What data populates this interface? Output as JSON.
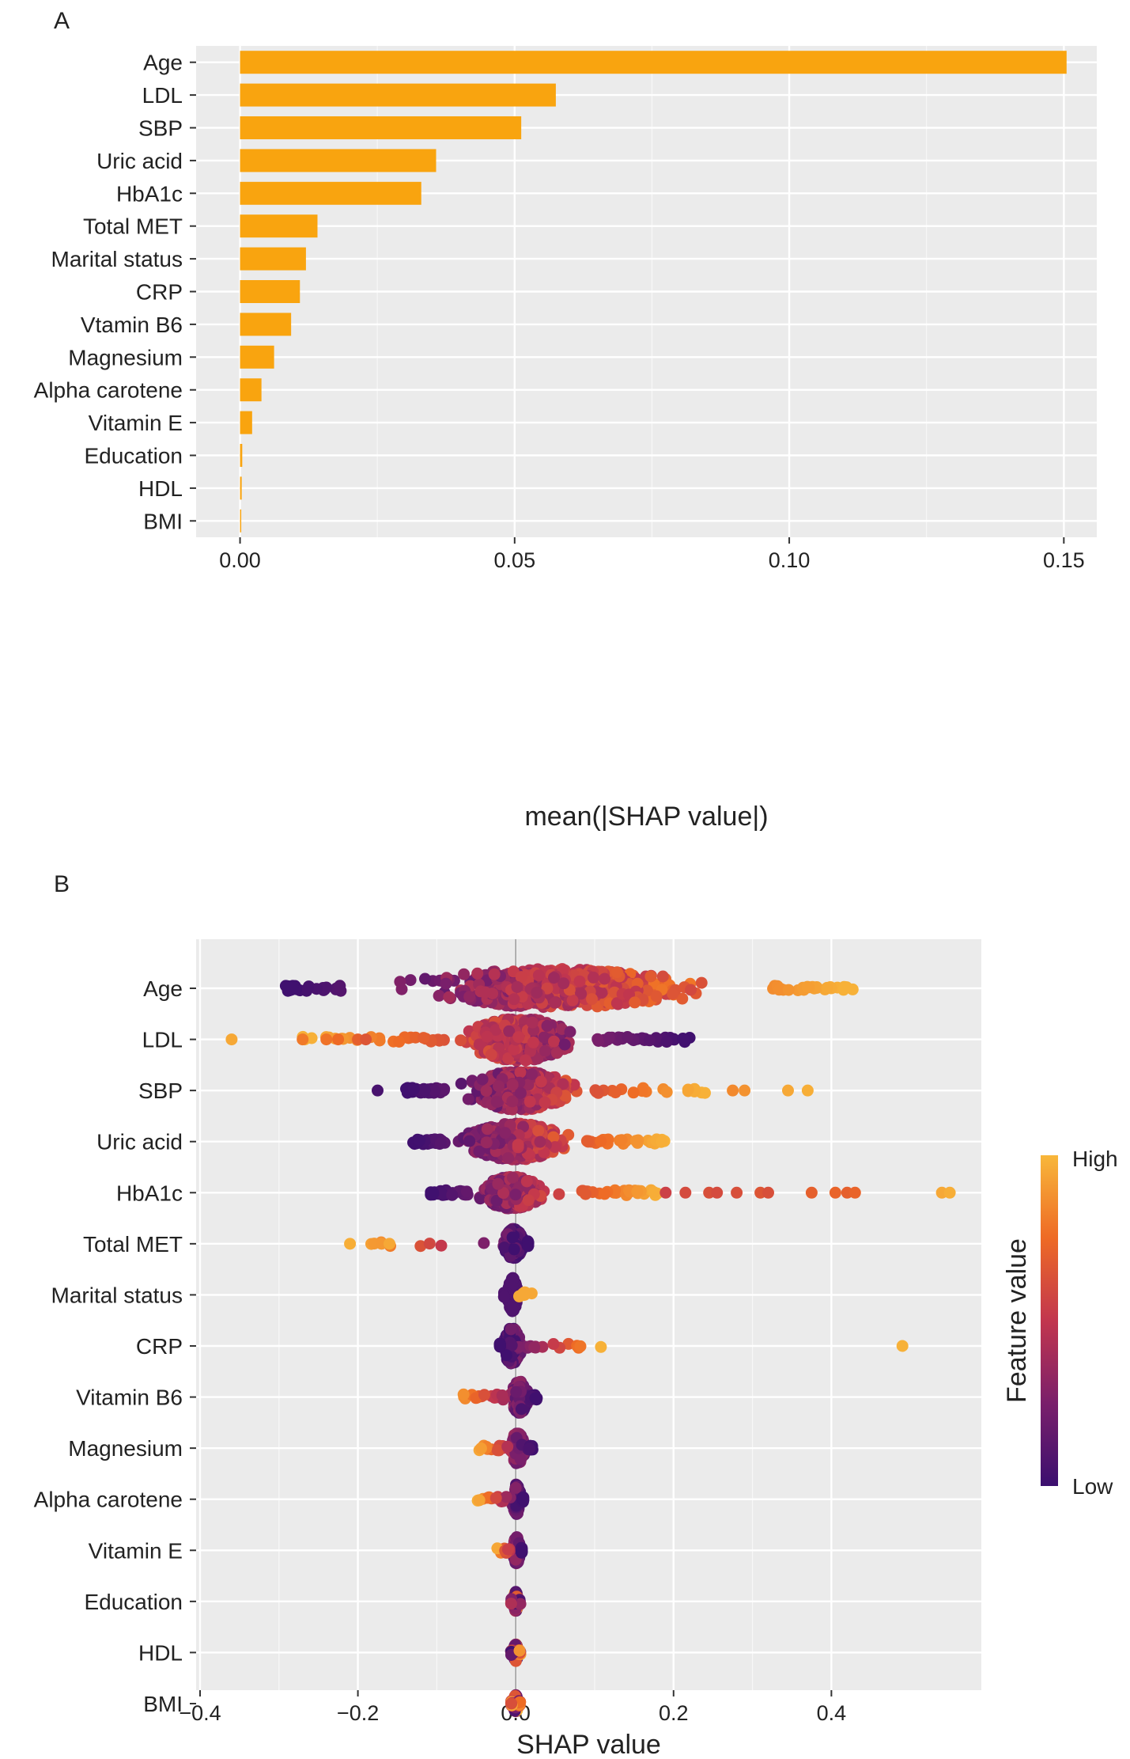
{
  "chart_data": [
    {
      "panel": "A",
      "type": "bar",
      "orientation": "horizontal",
      "title": "",
      "xlabel": "mean(|SHAP value|)",
      "ylabel": "",
      "xlim": [
        -0.008,
        0.156
      ],
      "xticks": [
        0.0,
        0.05,
        0.1,
        0.15
      ],
      "xtick_labels": [
        "0.00",
        "0.05",
        "0.10",
        "0.15"
      ],
      "grid": true,
      "categories": [
        "Age",
        "LDL",
        "SBP",
        "Uric acid",
        "HbA1c",
        "Total MET",
        "Marital status",
        "CRP",
        "Vtamin B6",
        "Magnesium",
        "Alpha carotene",
        "Vitamin E",
        "Education",
        "HDL",
        "BMI"
      ],
      "values": [
        0.1505,
        0.0575,
        0.0512,
        0.0357,
        0.033,
        0.0141,
        0.012,
        0.0109,
        0.0093,
        0.0062,
        0.0039,
        0.0022,
        0.0004,
        0.0003,
        0.0002
      ],
      "bar_color": "#F9A40F"
    },
    {
      "panel": "B",
      "type": "scatter",
      "subtype": "beeswarm",
      "title": "",
      "xlabel": "SHAP value",
      "ylabel": "",
      "xlim": [
        -0.405,
        0.59
      ],
      "xticks": [
        -0.4,
        -0.2,
        0.0,
        0.2,
        0.4
      ],
      "xtick_labels": [
        "−0.4",
        "−0.2",
        "0.0",
        "0.2",
        "0.4"
      ],
      "grid": true,
      "categories": [
        "Age",
        "LDL",
        "SBP",
        "Uric acid",
        "HbA1c",
        "Total MET",
        "Marital status",
        "CRP",
        "Vitamin B6",
        "Magnesium",
        "Alpha carotene",
        "Vitamin E",
        "Education",
        "HDL",
        "BMI"
      ],
      "series": [
        {
          "name": "Age",
          "range": [
            -0.295,
            0.428
          ],
          "core": [
            -0.22,
            0.32
          ],
          "spread": 0.9,
          "trend": "increasing",
          "outliers": []
        },
        {
          "name": "LDL",
          "range": [
            -0.27,
            0.225
          ],
          "core": [
            -0.09,
            0.1
          ],
          "spread": 1.0,
          "trend": "decreasing",
          "outliers": [
            {
              "x": -0.36,
              "v": 0.95
            },
            {
              "x": -0.27,
              "v": 0.8
            },
            {
              "x": -0.24,
              "v": 0.78
            },
            {
              "x": -0.225,
              "v": 0.75
            },
            {
              "x": -0.2,
              "v": 0.7
            },
            {
              "x": -0.19,
              "v": 0.65
            }
          ]
        },
        {
          "name": "SBP",
          "range": [
            -0.14,
            0.24
          ],
          "core": [
            -0.09,
            0.1
          ],
          "spread": 0.9,
          "trend": "increasing",
          "outliers": [
            {
              "x": -0.175,
              "v": 0.05
            },
            {
              "x": 0.275,
              "v": 0.85
            },
            {
              "x": 0.29,
              "v": 0.88
            },
            {
              "x": 0.345,
              "v": 0.95
            },
            {
              "x": 0.37,
              "v": 0.97
            }
          ]
        },
        {
          "name": "Uric acid",
          "range": [
            -0.13,
            0.19
          ],
          "core": [
            -0.09,
            0.09
          ],
          "spread": 0.85,
          "trend": "increasing",
          "outliers": [
            {
              "x": 0.185,
              "v": 0.97
            }
          ]
        },
        {
          "name": "HbA1c",
          "range": [
            -0.11,
            0.185
          ],
          "core": [
            -0.06,
            0.05
          ],
          "spread": 0.75,
          "trend": "increasing",
          "outliers": [
            {
              "x": 0.19,
              "v": 0.55
            },
            {
              "x": 0.215,
              "v": 0.6
            },
            {
              "x": 0.245,
              "v": 0.62
            },
            {
              "x": 0.255,
              "v": 0.6
            },
            {
              "x": 0.28,
              "v": 0.62
            },
            {
              "x": 0.31,
              "v": 0.65
            },
            {
              "x": 0.32,
              "v": 0.62
            },
            {
              "x": 0.375,
              "v": 0.7
            },
            {
              "x": 0.405,
              "v": 0.72
            },
            {
              "x": 0.42,
              "v": 0.7
            },
            {
              "x": 0.43,
              "v": 0.72
            },
            {
              "x": 0.54,
              "v": 0.95
            },
            {
              "x": 0.55,
              "v": 0.97
            }
          ]
        },
        {
          "name": "Total MET",
          "range": [
            -0.2,
            0.016
          ],
          "core": [
            -0.02,
            0.015
          ],
          "spread": 0.7,
          "trend": "decreasing",
          "outliers": [
            {
              "x": -0.21,
              "v": 0.97
            },
            {
              "x": -0.17,
              "v": 0.9
            },
            {
              "x": -0.16,
              "v": 0.95
            }
          ]
        },
        {
          "name": "Marital status",
          "range": [
            -0.015,
            0.025
          ],
          "core": [
            -0.012,
            0.004
          ],
          "spread": 0.8,
          "trend": "binary",
          "outliers": []
        },
        {
          "name": "CRP",
          "range": [
            -0.02,
            0.11
          ],
          "core": [
            -0.02,
            0.01
          ],
          "spread": 0.85,
          "trend": "increasing",
          "outliers": [
            {
              "x": 0.49,
              "v": 0.98
            }
          ]
        },
        {
          "name": "Vitamin B6",
          "range": [
            -0.08,
            0.027
          ],
          "core": [
            -0.01,
            0.02
          ],
          "spread": 0.75,
          "trend": "decreasing",
          "outliers": []
        },
        {
          "name": "Magnesium",
          "range": [
            -0.05,
            0.022
          ],
          "core": [
            -0.01,
            0.015
          ],
          "spread": 0.75,
          "trend": "decreasing",
          "outliers": []
        },
        {
          "name": "Alpha carotene",
          "range": [
            -0.05,
            0.01
          ],
          "core": [
            -0.006,
            0.008
          ],
          "spread": 0.7,
          "trend": "decreasing",
          "outliers": []
        },
        {
          "name": "Vitamin E",
          "range": [
            -0.025,
            0.008
          ],
          "core": [
            -0.005,
            0.007
          ],
          "spread": 0.65,
          "trend": "decreasing",
          "outliers": []
        },
        {
          "name": "Education",
          "range": [
            -0.006,
            0.006
          ],
          "core": [
            -0.004,
            0.004
          ],
          "spread": 0.45,
          "trend": "mixed",
          "outliers": []
        },
        {
          "name": "HDL",
          "range": [
            -0.006,
            0.006
          ],
          "core": [
            -0.004,
            0.004
          ],
          "spread": 0.4,
          "trend": "mixed",
          "outliers": []
        },
        {
          "name": "BMI",
          "range": [
            -0.006,
            0.006
          ],
          "core": [
            -0.004,
            0.004
          ],
          "spread": 0.4,
          "trend": "mixed",
          "outliers": []
        }
      ],
      "colorbar": {
        "title": "Feature value",
        "high_label": "High",
        "low_label": "Low",
        "colors": [
          "#3B0F6F",
          "#7A1F6B",
          "#C2364E",
          "#EE6A25",
          "#F8B73A"
        ]
      }
    }
  ],
  "labels": {
    "panel_a": "A",
    "panel_b": "B"
  }
}
